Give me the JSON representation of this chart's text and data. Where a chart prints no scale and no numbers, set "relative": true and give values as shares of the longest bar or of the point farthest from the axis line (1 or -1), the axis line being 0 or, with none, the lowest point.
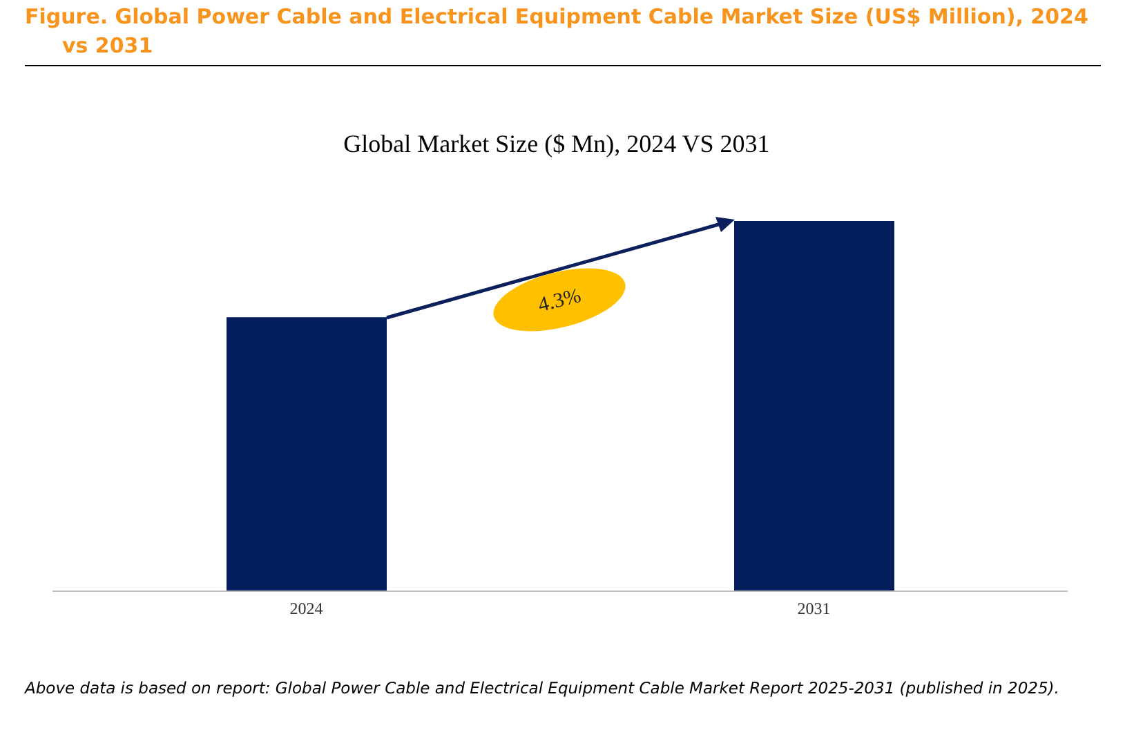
{
  "chart_data": {
    "type": "bar",
    "title": "Figure.   Global Power Cable and Electrical Equipment Cable Market Size (US$ Million), 2024 vs 2031",
    "subtitle": "Global Market Size ($ Mn), 2024 VS 2031",
    "categories": [
      "2024",
      "2031"
    ],
    "values": [
      0.74,
      1
    ],
    "color": "#041e5e",
    "relative": true,
    "annotations": [
      "4.3%",
      "Above data is based on report: Global Power Cable and Electrical Equipment Cable Market Report 2025-2031 (published in 2025)."
    ]
  }
}
